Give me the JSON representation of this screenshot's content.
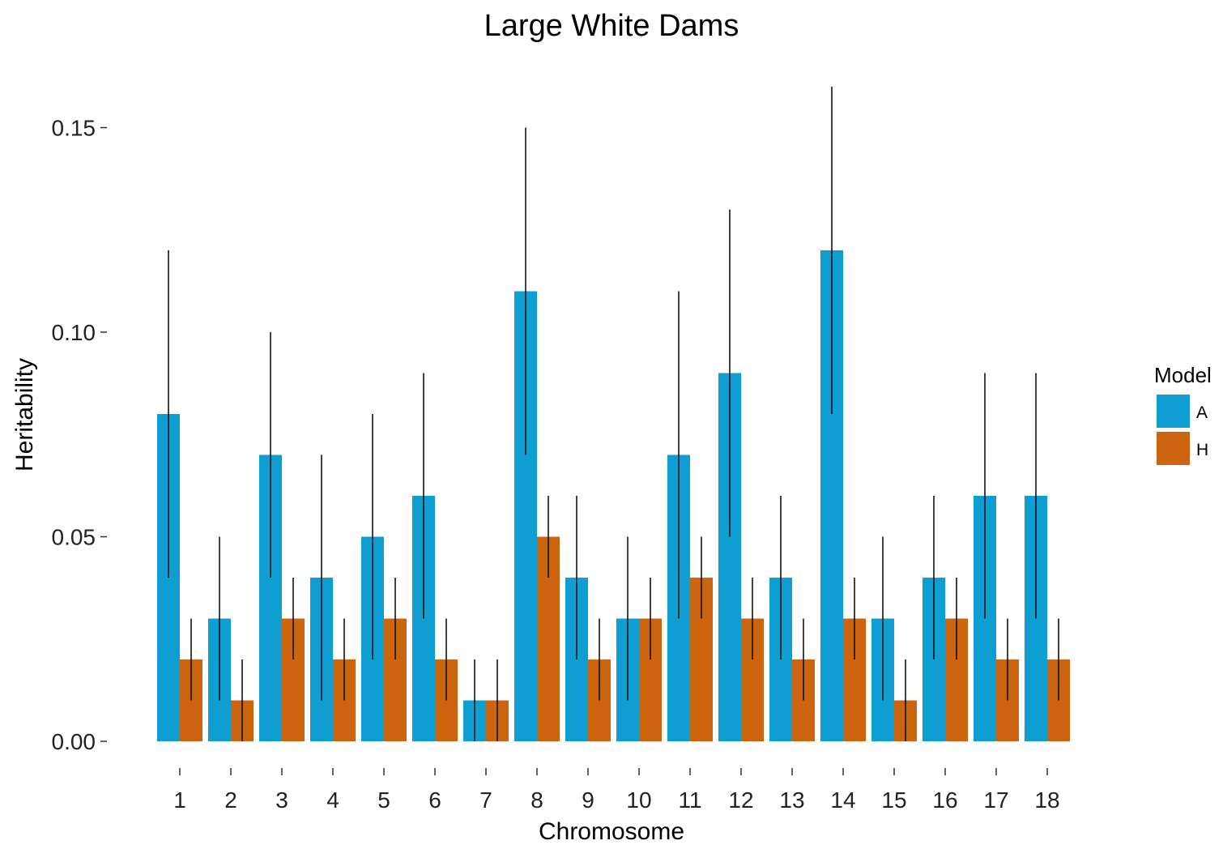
{
  "chart_data": {
    "type": "bar",
    "title": "Large White Dams",
    "xlabel": "Chromosome",
    "ylabel": "Heritability",
    "ylim": [
      0,
      0.16
    ],
    "yticks": [
      0.0,
      0.05,
      0.1,
      0.15
    ],
    "ytick_labels": [
      "0.00",
      "0.05",
      "0.10",
      "0.15"
    ],
    "grid": false,
    "legend": {
      "title": "Model",
      "position": "right"
    },
    "categories": [
      "1",
      "2",
      "3",
      "4",
      "5",
      "6",
      "7",
      "8",
      "9",
      "10",
      "11",
      "12",
      "13",
      "14",
      "15",
      "16",
      "17",
      "18"
    ],
    "series": [
      {
        "name": "A",
        "color": "#0f9ed1",
        "values": [
          0.08,
          0.03,
          0.07,
          0.04,
          0.05,
          0.06,
          0.01,
          0.11,
          0.04,
          0.03,
          0.07,
          0.09,
          0.04,
          0.12,
          0.03,
          0.04,
          0.06,
          0.06
        ],
        "err_low": [
          0.04,
          0.01,
          0.04,
          0.01,
          0.02,
          0.03,
          0.0,
          0.07,
          0.02,
          0.01,
          0.03,
          0.05,
          0.02,
          0.08,
          0.01,
          0.02,
          0.03,
          0.03
        ],
        "err_high": [
          0.12,
          0.05,
          0.1,
          0.07,
          0.08,
          0.09,
          0.02,
          0.15,
          0.06,
          0.05,
          0.11,
          0.13,
          0.06,
          0.16,
          0.05,
          0.06,
          0.09,
          0.09
        ]
      },
      {
        "name": "H",
        "color": "#cc6410",
        "values": [
          0.02,
          0.01,
          0.03,
          0.02,
          0.03,
          0.02,
          0.01,
          0.05,
          0.02,
          0.03,
          0.04,
          0.03,
          0.02,
          0.03,
          0.01,
          0.03,
          0.02,
          0.02
        ],
        "err_low": [
          0.01,
          0.0,
          0.02,
          0.01,
          0.02,
          0.01,
          0.0,
          0.04,
          0.01,
          0.02,
          0.03,
          0.02,
          0.01,
          0.02,
          0.0,
          0.02,
          0.01,
          0.01
        ],
        "err_high": [
          0.03,
          0.02,
          0.04,
          0.03,
          0.04,
          0.03,
          0.02,
          0.06,
          0.03,
          0.04,
          0.05,
          0.04,
          0.03,
          0.04,
          0.02,
          0.04,
          0.03,
          0.03
        ]
      }
    ]
  }
}
